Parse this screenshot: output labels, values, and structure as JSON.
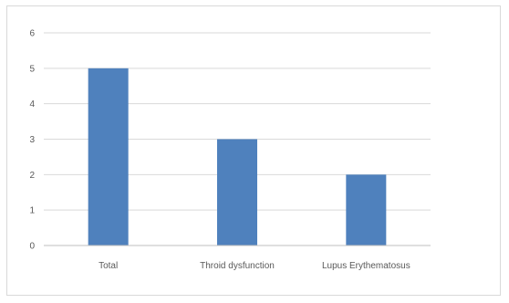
{
  "chart_data": {
    "type": "bar",
    "title": "",
    "xlabel": "",
    "ylabel": "",
    "categories": [
      "Total",
      "Throid dysfunction",
      "Lupus Erythematosus"
    ],
    "values": [
      5,
      3,
      2
    ],
    "ylim": [
      0,
      6
    ],
    "yticks": [
      "0",
      "1",
      "2",
      "3",
      "4",
      "5",
      "6"
    ],
    "grid": true,
    "legend": "none",
    "bar_color": "#4f81bd",
    "grid_color": "#d9d9d9",
    "axis_color": "#bfbfbf",
    "label_color": "#595959"
  }
}
